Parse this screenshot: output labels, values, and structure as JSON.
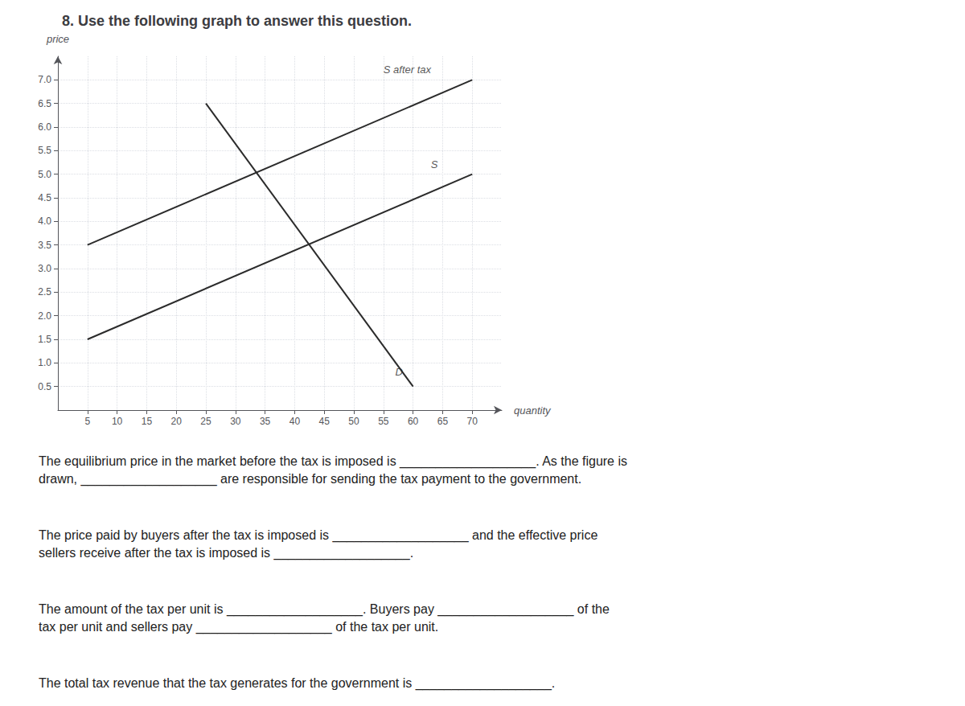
{
  "chart_data": {
    "type": "line",
    "title": "8. Use the following graph to answer this question.",
    "xlabel": "quantity",
    "ylabel": "price",
    "xlim": [
      0,
      75
    ],
    "ylim": [
      0,
      7.5
    ],
    "xticks": [
      5,
      10,
      15,
      20,
      25,
      30,
      35,
      40,
      45,
      50,
      55,
      60,
      65,
      70
    ],
    "yticks": [
      0.5,
      {
        "value": 1,
        "label": "1.0"
      },
      1.5,
      {
        "value": 2,
        "label": "2.0"
      },
      2.5,
      {
        "value": 3,
        "label": "3.0"
      },
      3.5,
      {
        "value": 4,
        "label": "4.0"
      },
      4.5,
      {
        "value": 5,
        "label": "5.0"
      },
      5.5,
      {
        "value": 6,
        "label": "6.0"
      },
      6.5,
      {
        "value": 7,
        "label": "7.0"
      }
    ],
    "grid": true,
    "series": [
      {
        "x": [
          5,
          70
        ],
        "values": [
          1.5,
          5.0
        ],
        "color": "#2b2b2b"
      },
      {
        "x": [
          5,
          70
        ],
        "values": [
          3.5,
          7.0
        ],
        "color": "#2b2b2b"
      },
      {
        "x": [
          25,
          60
        ],
        "values": [
          6.5,
          0.5
        ],
        "color": "#2b2b2b"
      }
    ],
    "annotations": [
      {
        "text": "S",
        "x": 63,
        "y": 5.1
      },
      {
        "text": "S after tax",
        "x": 55,
        "y": 7.1
      },
      {
        "text": "D",
        "x": 57,
        "y": 0.7
      }
    ],
    "text_blocks": [
      "The equilibrium price in the market before the tax is imposed is ___________________. As the figure is\ndrawn, ___________________ are responsible for sending the tax payment to the government.",
      "The price paid by buyers after the tax is imposed is ___________________ and the effective price\nsellers receive after the tax is imposed is ___________________.",
      "The amount of the tax per unit is ___________________. Buyers pay ___________________ of the\ntax per unit and sellers pay ___________________ of the tax per unit.",
      "The total tax revenue that the tax generates for the government is ___________________."
    ]
  }
}
